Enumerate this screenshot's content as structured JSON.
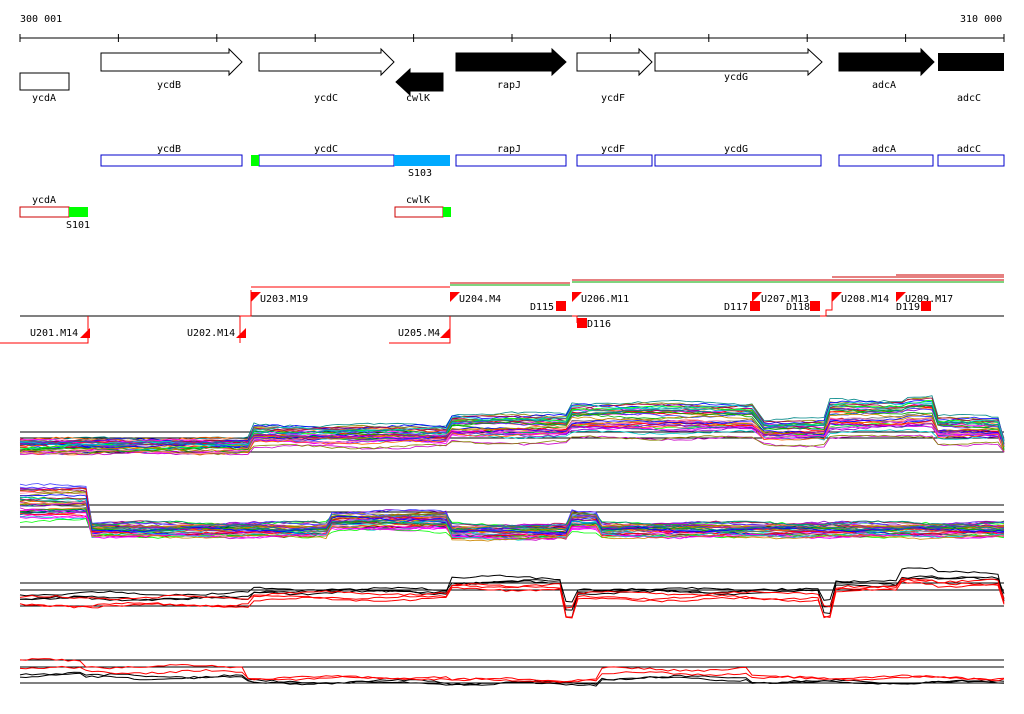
{
  "ruler": {
    "start_label": "300 001",
    "end_label": "310 000"
  },
  "colors": {
    "red": "#ff0000",
    "green": "#00ff00",
    "blue": "#0000cc",
    "bright_blue": "#00aaff",
    "black": "#000000"
  },
  "genes": [
    {
      "label": "ycdA",
      "strand": "+",
      "style": "open"
    },
    {
      "label": "ycdB",
      "strand": "+",
      "style": "open"
    },
    {
      "label": "ycdC",
      "strand": "+",
      "style": "open"
    },
    {
      "label": "cwlK",
      "strand": "-",
      "style": "filled"
    },
    {
      "label": "rapJ",
      "strand": "+",
      "style": "filled"
    },
    {
      "label": "ycdF",
      "strand": "+",
      "style": "open"
    },
    {
      "label": "ycdG",
      "strand": "+",
      "style": "open"
    },
    {
      "label": "adcA",
      "strand": "+",
      "style": "filled"
    },
    {
      "label": "adcC",
      "strand": "+",
      "style": "filled"
    }
  ],
  "transcripts": [
    {
      "label": "ycdB"
    },
    {
      "label": "ycdC"
    },
    {
      "label": "rapJ"
    },
    {
      "label": "ycdF"
    },
    {
      "label": "ycdG"
    },
    {
      "label": "adcA"
    },
    {
      "label": "adcC"
    }
  ],
  "segments": [
    {
      "label": "S103"
    }
  ],
  "small_features": [
    {
      "label": "ycdA",
      "sub_label": "S101"
    },
    {
      "label": "cwlK"
    }
  ],
  "upshifts": [
    {
      "label": "U201.M14"
    },
    {
      "label": "U202.M14"
    },
    {
      "label": "U203.M19"
    },
    {
      "label": "U204.M4"
    },
    {
      "label": "U205.M4"
    },
    {
      "label": "U206.M11"
    },
    {
      "label": "U207.M13"
    },
    {
      "label": "U208.M14"
    },
    {
      "label": "U209.M17"
    }
  ],
  "downshifts": [
    {
      "label": "D115"
    },
    {
      "label": "D116"
    },
    {
      "label": "D117"
    },
    {
      "label": "D118"
    },
    {
      "label": "D119"
    }
  ],
  "expression_panels": [
    {
      "name": "all-conditions-forward",
      "series_count": 40
    },
    {
      "name": "all-conditions-reverse",
      "series_count": 40
    },
    {
      "name": "selected-forward",
      "series_count": 6
    },
    {
      "name": "selected-reverse",
      "series_count": 4
    }
  ]
}
